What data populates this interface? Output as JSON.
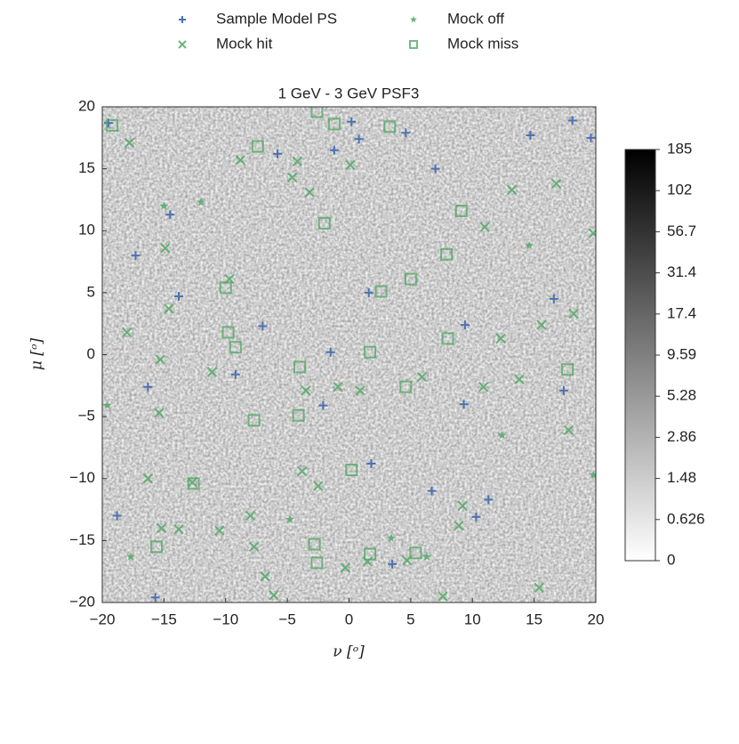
{
  "chart_data": {
    "type": "scatter",
    "title": "1 GeV - 3 GeV PSF3",
    "xlabel": "ν [ᵒ]",
    "ylabel": "μ [ᵒ]",
    "xlim": [
      -20,
      20
    ],
    "ylim": [
      -20,
      20
    ],
    "xticks": [
      {
        "value": -20,
        "label": "−20"
      },
      {
        "value": -15,
        "label": "−15"
      },
      {
        "value": -10,
        "label": "−10"
      },
      {
        "value": -5,
        "label": "−5"
      },
      0,
      5,
      10,
      15,
      20
    ],
    "yticks": [
      {
        "value": -20,
        "label": "−20"
      },
      {
        "value": -15,
        "label": "−15"
      },
      {
        "value": -10,
        "label": "−10"
      },
      {
        "value": -5,
        "label": "−5"
      },
      0,
      5,
      10,
      15,
      20
    ],
    "colorbar": {
      "ticks": [
        185,
        102,
        56.7,
        31.4,
        17.4,
        9.59,
        5.28,
        2.86,
        1.48,
        0.626,
        0
      ]
    },
    "series": [
      {
        "name": "Sample Model PS",
        "color": "#4c72b0",
        "marker": "plus",
        "x": [
          -19.5,
          -15.7,
          -17.3,
          -18.8,
          -16.3,
          -14.5,
          -5.8,
          -1.2,
          0.2,
          -2.1,
          -1.5,
          0.8,
          1.8,
          3.5,
          4.6,
          6.7,
          7,
          9.4,
          9.3,
          10.3,
          11.3,
          14.7,
          16.6,
          17.4,
          18.1,
          19.6,
          -9.2,
          -7,
          1.6,
          -13.8
        ],
        "y": [
          18.7,
          -19.6,
          8,
          -13,
          -2.6,
          11.3,
          16.2,
          16.5,
          18.8,
          -4.1,
          0.2,
          17.4,
          -8.8,
          -16.9,
          17.9,
          -11,
          15,
          2.4,
          -4,
          -13.1,
          -11.7,
          17.7,
          4.5,
          -2.9,
          18.9,
          17.5,
          -1.6,
          2.3,
          5,
          4.7
        ]
      },
      {
        "name": "Mock hit",
        "color": "#55a868",
        "marker": "x",
        "x": [
          -17.8,
          -18,
          -14.9,
          -14.6,
          -15.3,
          -9.7,
          -8.8,
          -6.1,
          -2.5,
          -3.2,
          -0.9,
          0.9,
          1.5,
          5.9,
          -7.7,
          -6.8,
          -4.6,
          -4.2,
          0.1,
          -3.5,
          -3.8,
          -8,
          -10.5,
          -13.8,
          -15.2,
          -16.3,
          -15.4,
          -12.7,
          -11.1,
          9.2,
          8.9,
          10.9,
          12.3,
          13.8,
          15.4,
          15.6,
          16.8,
          18.2,
          19.8,
          17.8,
          13.2,
          11,
          7.6,
          4.7,
          -0.3
        ],
        "y": [
          17.1,
          1.8,
          8.6,
          3.7,
          -0.4,
          6.1,
          15.7,
          -19.4,
          -10.6,
          13.1,
          -2.6,
          -2.9,
          -16.7,
          -1.8,
          -15.5,
          -17.9,
          14.3,
          15.6,
          15.3,
          -2.9,
          -9.4,
          -13,
          -14.2,
          -14.1,
          -14,
          -10,
          -4.7,
          -10.3,
          -1.4,
          -12.2,
          -13.8,
          -2.6,
          1.3,
          -2,
          -18.8,
          2.4,
          13.8,
          3.3,
          9.8,
          -6.1,
          13.3,
          10.3,
          -19.5,
          -16.6,
          -17.2
        ]
      },
      {
        "name": "Mock off",
        "color": "#55a868",
        "marker": "star",
        "x": [
          -15,
          -12,
          12.4,
          -4.8,
          3.4,
          6.3,
          14.6,
          -19.6,
          19.8,
          -17.7
        ],
        "y": [
          12,
          12.3,
          -6.5,
          -13.3,
          -14.8,
          -16.3,
          8.8,
          -4.1,
          -9.7,
          -16.3
        ]
      },
      {
        "name": "Mock miss",
        "color": "#55a868",
        "marker": "square",
        "x": [
          -19.2,
          -2.6,
          -1.2,
          3.3,
          -7.4,
          -2,
          9.1,
          7.9,
          5,
          2.6,
          -10,
          -9.8,
          -9.2,
          -4,
          -7.7,
          -4.1,
          -12.6,
          0.2,
          -15.6,
          -2.8,
          -2.6,
          1.7,
          5.4,
          4.6,
          8,
          17.7,
          1.7
        ],
        "y": [
          18.5,
          19.6,
          18.6,
          18.4,
          16.8,
          10.6,
          11.6,
          8.1,
          6.1,
          5.1,
          5.4,
          1.8,
          0.6,
          -1,
          -5.3,
          -4.9,
          -10.4,
          -9.3,
          -15.5,
          -15.3,
          -16.8,
          -16.1,
          -16,
          -2.6,
          1.3,
          -1.2,
          0.2
        ]
      }
    ]
  }
}
